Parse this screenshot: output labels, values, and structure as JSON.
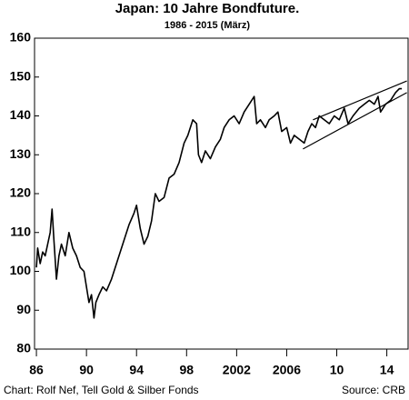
{
  "chart_data": {
    "type": "line",
    "title": "Japan:  10 Jahre Bondfuture.",
    "subtitle": "1986 - 2015 (März)",
    "footer_left": "Chart: Rolf Nef, Tell Gold & Silber Fonds",
    "footer_right": "Source: CRB",
    "xlim": [
      1985.85,
      2015.7
    ],
    "ylim": [
      80,
      160
    ],
    "xticks": [
      {
        "value": 1986,
        "label": "86"
      },
      {
        "value": 1990,
        "label": "90"
      },
      {
        "value": 1994,
        "label": "94"
      },
      {
        "value": 1998,
        "label": "98"
      },
      2002,
      2006,
      {
        "value": 2010,
        "label": "10"
      },
      {
        "value": 2014,
        "label": "14"
      }
    ],
    "yticks": [
      80,
      90,
      100,
      110,
      120,
      130,
      140,
      150,
      160
    ],
    "grid": false,
    "series": [
      {
        "color": "#000000",
        "x": [
          1986.0,
          1986.1,
          1986.3,
          1986.5,
          1986.7,
          1986.9,
          1987.1,
          1987.25,
          1987.4,
          1987.6,
          1987.8,
          1988.0,
          1988.3,
          1988.6,
          1988.9,
          1989.2,
          1989.5,
          1989.8,
          1990.0,
          1990.2,
          1990.4,
          1990.6,
          1990.75,
          1991.0,
          1991.3,
          1991.6,
          1992.0,
          1992.5,
          1993.0,
          1993.4,
          1993.8,
          1994.0,
          1994.3,
          1994.6,
          1994.9,
          1995.2,
          1995.5,
          1995.8,
          1996.2,
          1996.6,
          1997.0,
          1997.4,
          1997.8,
          1998.1,
          1998.5,
          1998.8,
          1998.95,
          1999.2,
          1999.5,
          1999.9,
          2000.3,
          2000.7,
          2001.0,
          2001.4,
          2001.8,
          2002.2,
          2002.6,
          2003.0,
          2003.4,
          2003.6,
          2003.9,
          2004.3,
          2004.6,
          2005.0,
          2005.3,
          2005.6,
          2006.0,
          2006.3,
          2006.6,
          2007.0,
          2007.4,
          2007.7,
          2008.0,
          2008.3,
          2008.6,
          2009.0,
          2009.4,
          2009.8,
          2010.2,
          2010.6,
          2010.9,
          2011.3,
          2011.8,
          2012.2,
          2012.6,
          2013.0,
          2013.3,
          2013.5,
          2013.9,
          2014.3,
          2014.7,
          2015.0,
          2015.2
        ],
        "values": [
          101,
          106,
          102,
          105,
          104,
          107,
          110,
          116,
          108,
          98,
          104,
          107,
          104,
          110,
          106,
          104,
          101,
          100,
          96,
          92,
          94,
          88,
          92,
          94,
          96,
          95,
          98,
          103,
          108,
          112,
          115,
          117,
          111,
          107,
          109,
          113,
          120,
          118,
          119,
          124,
          125,
          128,
          133,
          135,
          139,
          138,
          130,
          128,
          131,
          129,
          132,
          134,
          137,
          139,
          140,
          138,
          141,
          143,
          145,
          138,
          139,
          137,
          139,
          140,
          141,
          136,
          137,
          133,
          135,
          134,
          133,
          136,
          138,
          137,
          140,
          139,
          138,
          140,
          139,
          142,
          138,
          140,
          142,
          143,
          144,
          143,
          145,
          141,
          143,
          144,
          146,
          147,
          147
        ]
      }
    ],
    "trendlines": [
      {
        "color": "#000000",
        "x": [
          2007.3,
          2015.6
        ],
        "values": [
          131.5,
          146
        ]
      },
      {
        "color": "#000000",
        "x": [
          2008.1,
          2015.6
        ],
        "values": [
          139,
          149
        ]
      }
    ]
  }
}
